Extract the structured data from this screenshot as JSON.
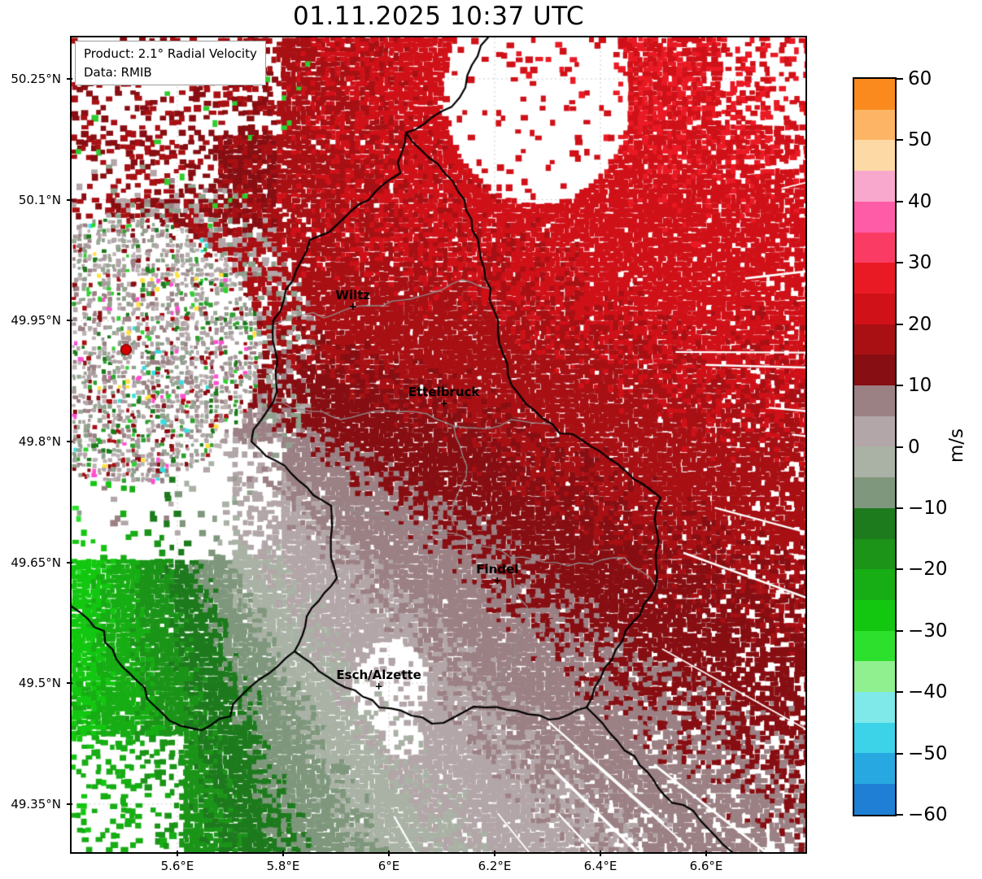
{
  "title": "01.11.2025 10:37 UTC",
  "info_box": {
    "product": "Product: 2.1° Radial Velocity",
    "data_source": "Data: RMIB"
  },
  "axes": {
    "lat_ticks": [
      "50.25°N",
      "50.1°N",
      "49.95°N",
      "49.8°N",
      "49.65°N",
      "49.5°N",
      "49.35°N"
    ],
    "lon_ticks": [
      "5.6°E",
      "5.8°E",
      "6°E",
      "6.2°E",
      "6.4°E",
      "6.6°E"
    ]
  },
  "cities": {
    "wiltz": "Wiltz",
    "ettelbruck": "Ettelbruck",
    "findel": "Findel",
    "esch": "Esch/Alzette"
  },
  "radar": {
    "marker_color": "#d40000"
  },
  "colorbar": {
    "unit": "m/s",
    "min": -60,
    "max": 60,
    "step_per_segment": 5,
    "ticks": [
      "60",
      "50",
      "40",
      "30",
      "20",
      "10",
      "0",
      "−10",
      "−20",
      "−30",
      "−40",
      "−50",
      "−60"
    ],
    "segment_colors_top_to_bottom": [
      "#fb8a1e",
      "#fdb565",
      "#fdd9a6",
      "#f8a8cc",
      "#ff5ca8",
      "#fa3c64",
      "#ea1a24",
      "#d01118",
      "#a81014",
      "#870e12",
      "#9b8084",
      "#b3a6a8",
      "#a9b2a5",
      "#7f977c",
      "#1d7a1d",
      "#1b9418",
      "#17ad14",
      "#13c710",
      "#2ee02e",
      "#90f090",
      "#7fe8e8",
      "#3cd2e8",
      "#28a8e0",
      "#1f7fd4"
    ]
  }
}
